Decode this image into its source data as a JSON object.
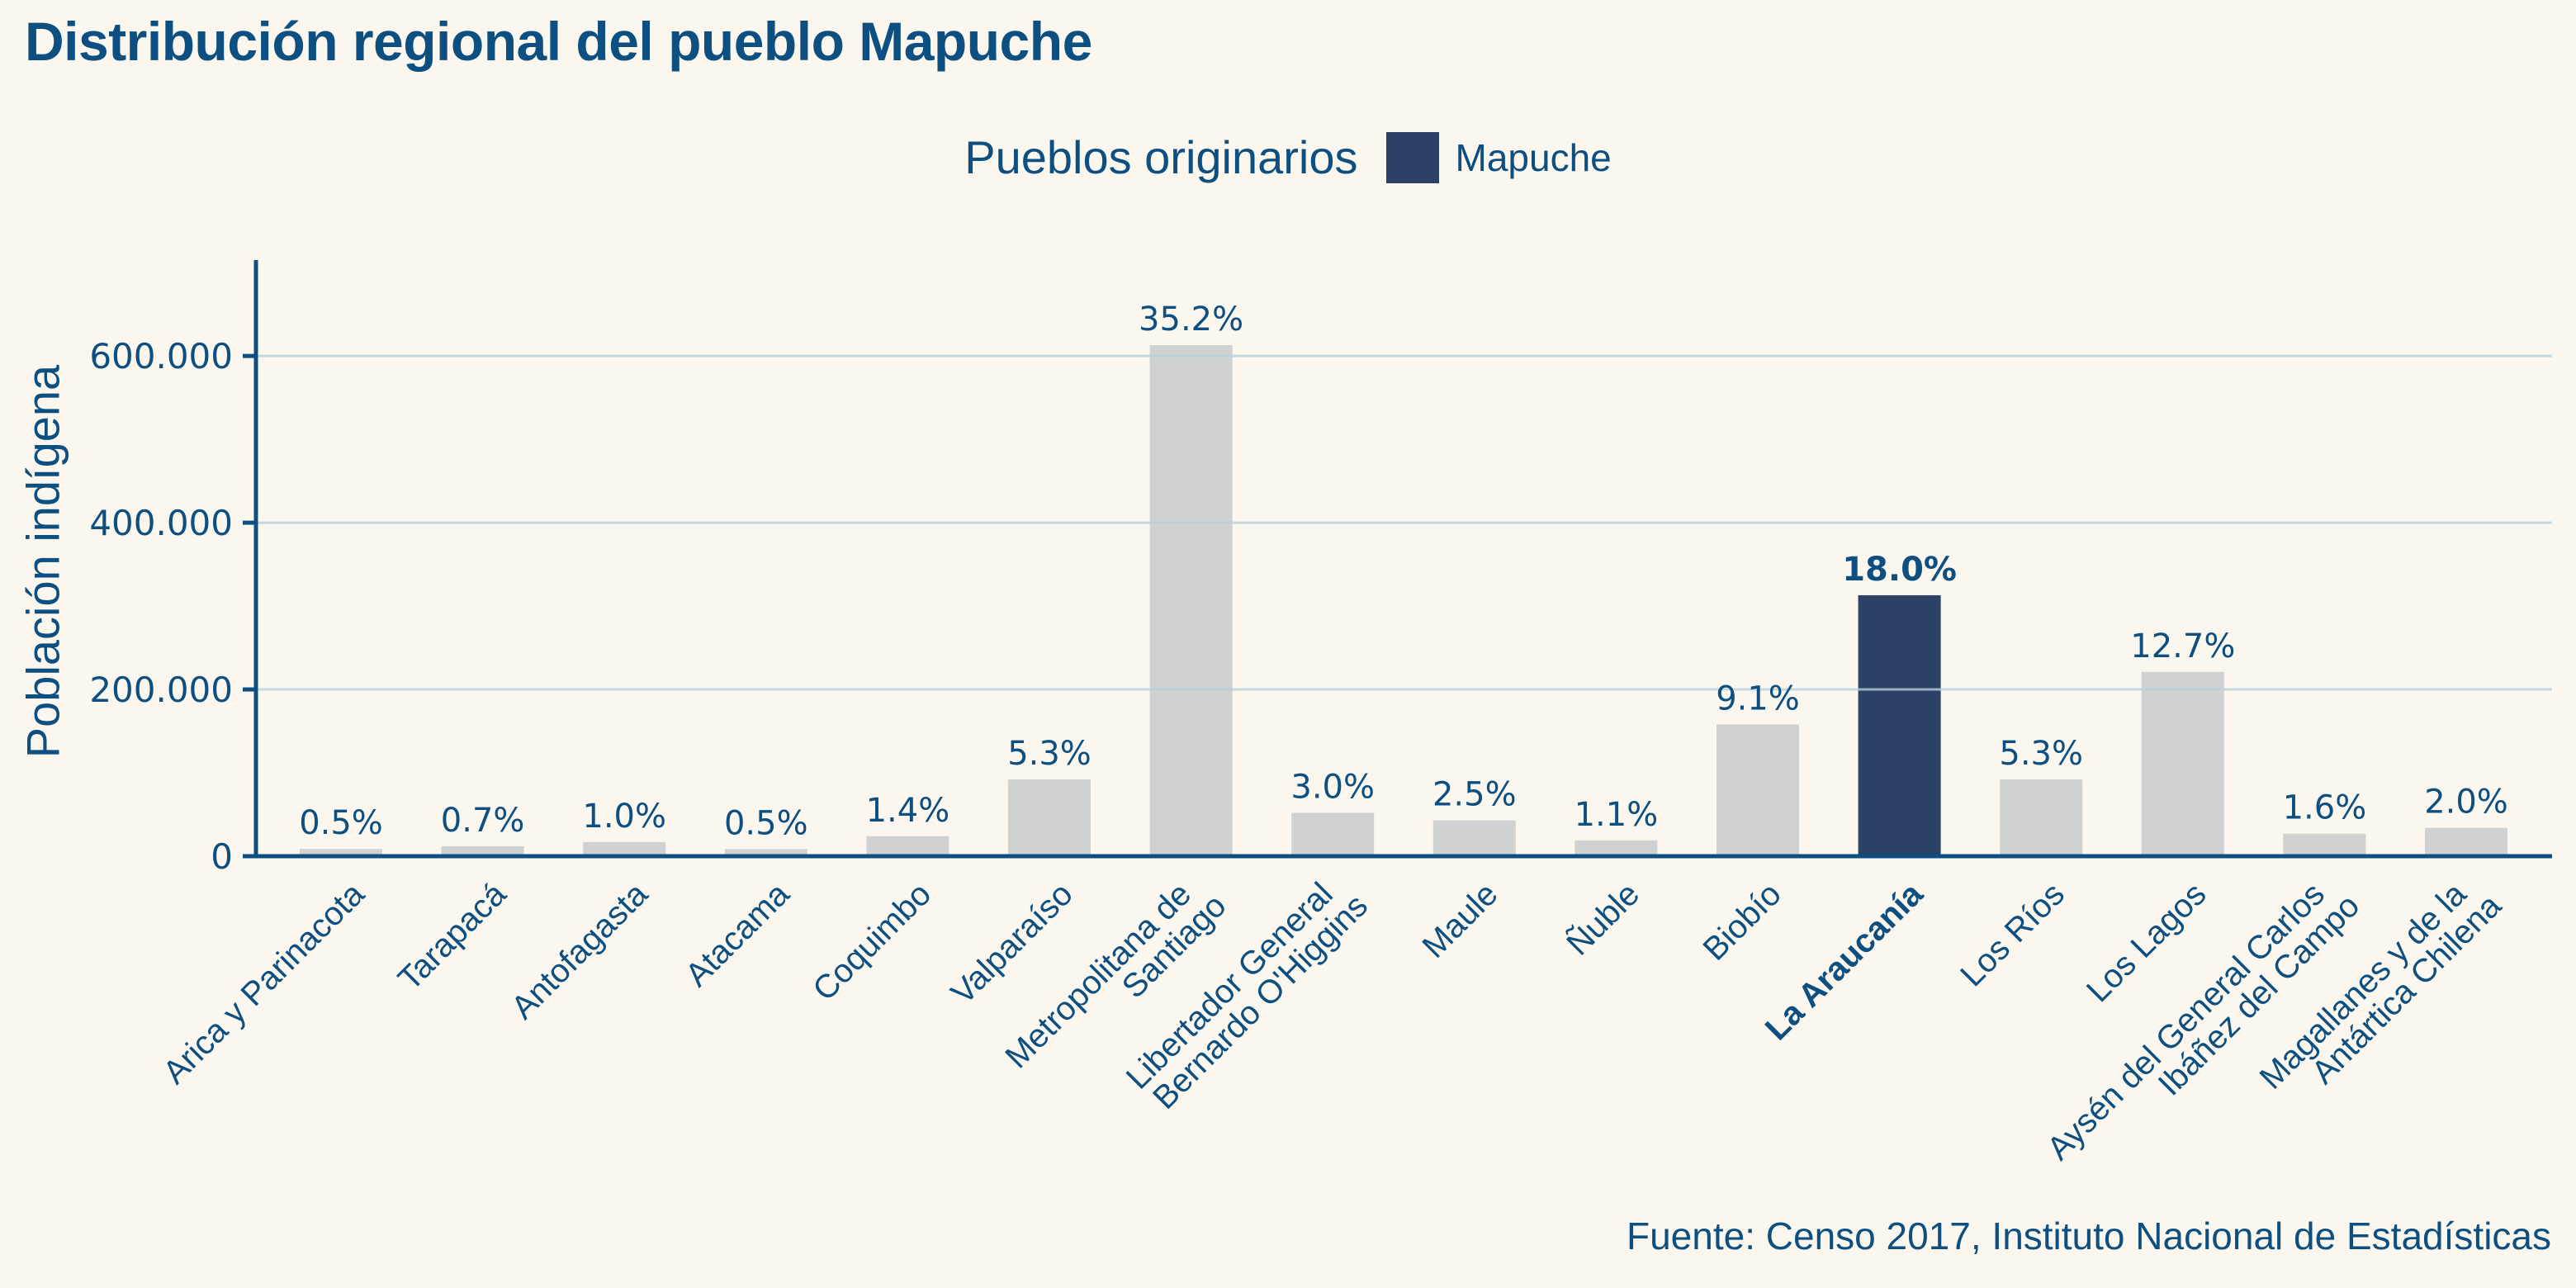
{
  "chart_data": {
    "type": "bar",
    "title": "Distribución regional del pueblo Mapuche",
    "legend": {
      "title": "Pueblos originarios",
      "entries": [
        {
          "label": "Mapuche",
          "color": "#2b4166"
        }
      ],
      "placement": "top-center"
    },
    "xlabel": "",
    "ylabel": "Población indígena",
    "ylim": [
      0,
      715000
    ],
    "yticks": [
      0,
      200000,
      400000,
      600000
    ],
    "ytick_labels": [
      "0",
      "200.000",
      "400.000",
      "600.000"
    ],
    "grid": "horizontal",
    "categories": [
      "Arica y Parinacota",
      "Tarapacá",
      "Antofagasta",
      "Atacama",
      "Coquimbo",
      "Valparaíso",
      "Metropolitana de\nSantiago",
      "Libertador General\nBernardo O'Higgins",
      "Maule",
      "Ñuble",
      "Biobío",
      "La Araucanía",
      "Los Ríos",
      "Los Lagos",
      "Aysén del General Carlos\nIbáñez del Campo",
      "Magallanes y de la\nAntártica Chilena"
    ],
    "values": [
      8700,
      12000,
      17000,
      8500,
      24000,
      92000,
      613000,
      52000,
      43000,
      19000,
      158000,
      313000,
      92000,
      221000,
      27000,
      34000
    ],
    "data_labels": [
      "0.5%",
      "0.7%",
      "1.0%",
      "0.5%",
      "1.4%",
      "5.3%",
      "35.2%",
      "3.0%",
      "2.5%",
      "1.1%",
      "9.1%",
      "18.0%",
      "5.3%",
      "12.7%",
      "1.6%",
      "2.0%"
    ],
    "highlight_index": 11,
    "colors": {
      "default_bar": "#d0d2d1",
      "highlight_bar": "#2b4166",
      "axis": "#0d4f80",
      "grid": "#b7d0de",
      "text": "#0d4f80",
      "background": "#fbf7ee"
    },
    "source": "Fuente: Censo 2017, Instituto Nacional de Estadísticas"
  }
}
